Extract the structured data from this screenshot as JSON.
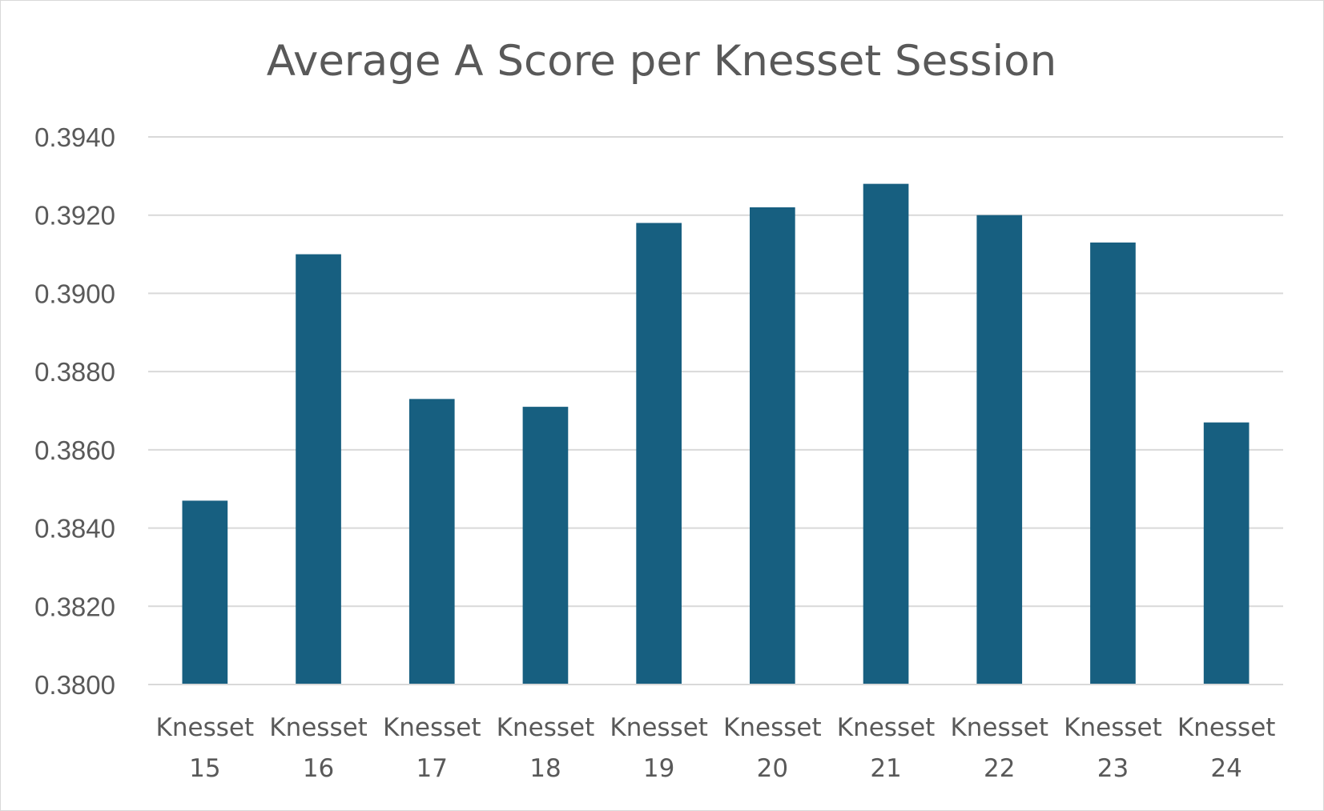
{
  "chart_data": {
    "type": "bar",
    "title": "Average A Score per Knesset Session",
    "xlabel": "",
    "ylabel": "",
    "categories": [
      [
        "Knesset",
        "15"
      ],
      [
        "Knesset",
        "16"
      ],
      [
        "Knesset",
        "17"
      ],
      [
        "Knesset",
        "18"
      ],
      [
        "Knesset",
        "19"
      ],
      [
        "Knesset",
        "20"
      ],
      [
        "Knesset",
        "21"
      ],
      [
        "Knesset",
        "22"
      ],
      [
        "Knesset",
        "23"
      ],
      [
        "Knesset",
        "24"
      ]
    ],
    "values": [
      0.3847,
      0.391,
      0.3873,
      0.3871,
      0.3918,
      0.3922,
      0.3928,
      0.392,
      0.3913,
      0.3867
    ],
    "ylim": [
      0.38,
      0.394
    ],
    "yticks": [
      "0.3800",
      "0.3820",
      "0.3840",
      "0.3860",
      "0.3880",
      "0.3900",
      "0.3920",
      "0.3940"
    ],
    "grid": true,
    "legend": "none",
    "colors": {
      "bar": "#175f80",
      "grid": "#d9d9d9",
      "text": "#595959"
    }
  }
}
